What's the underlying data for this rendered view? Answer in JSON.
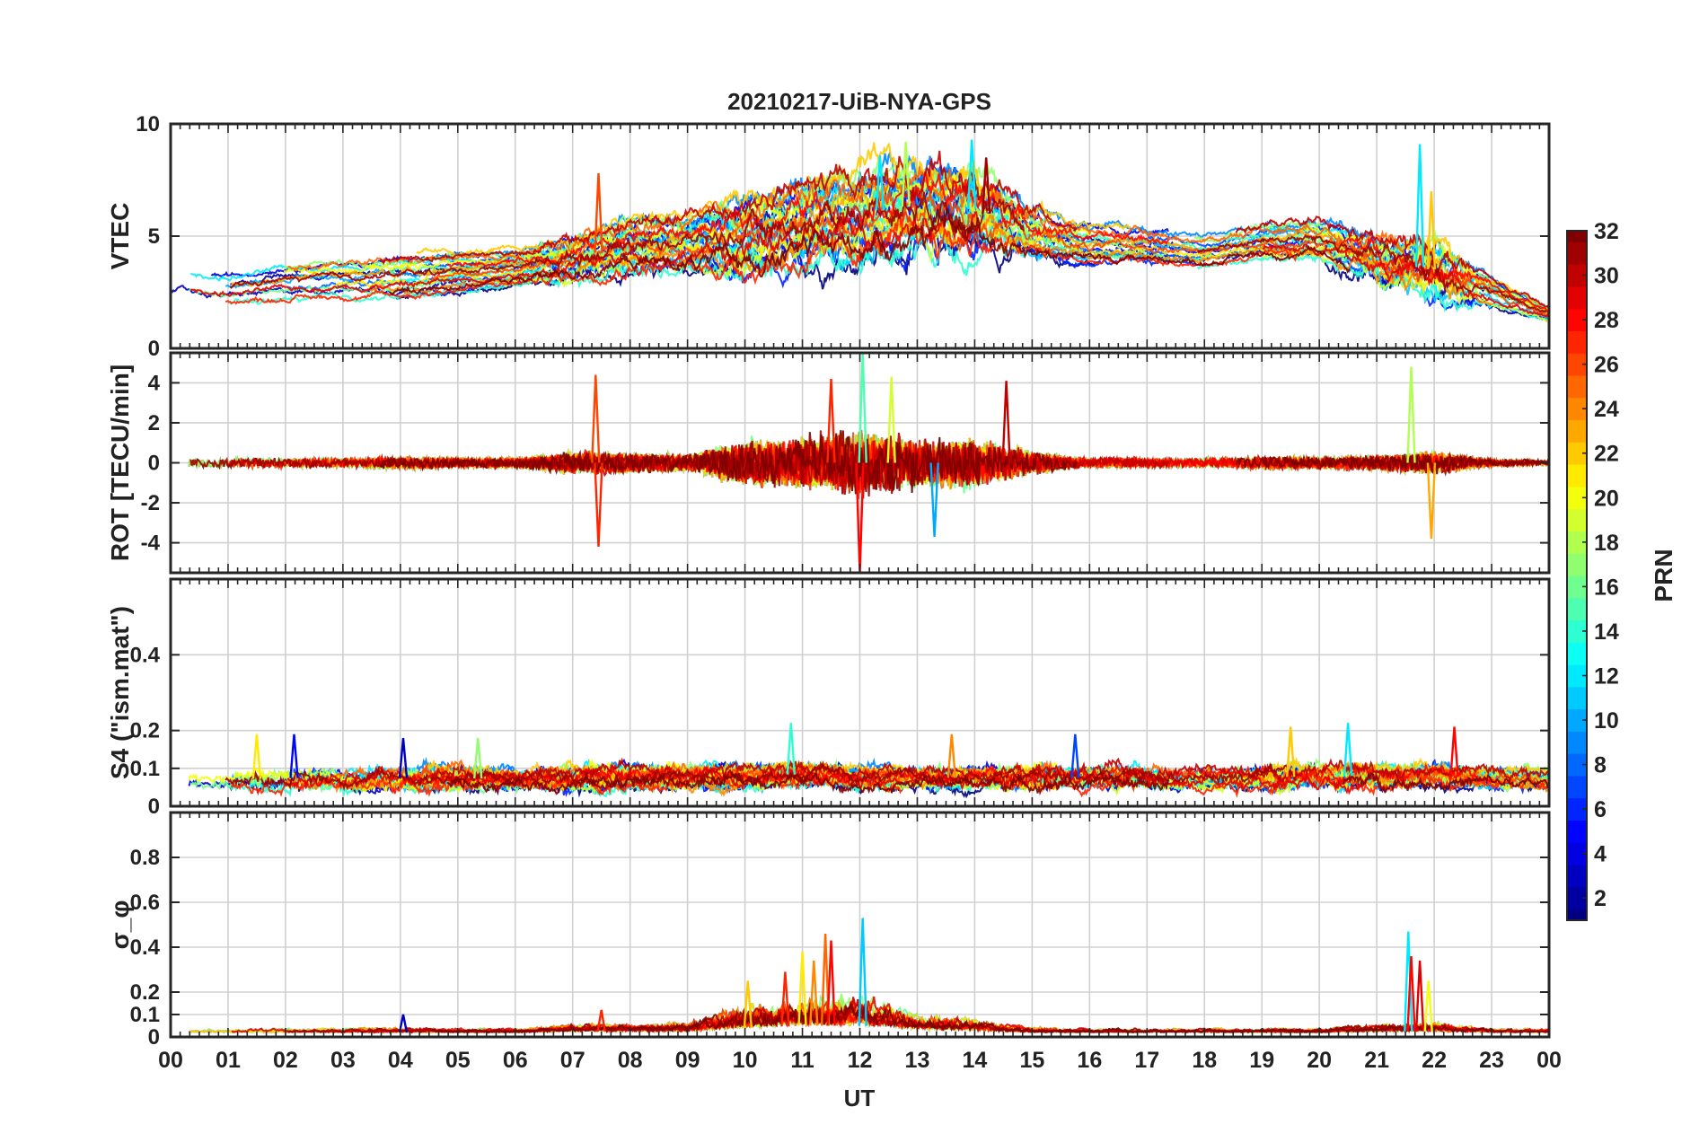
{
  "chart_data": {
    "type": "line",
    "title": "20210217-UiB-NYA-GPS",
    "xlabel": "UT",
    "xlim": [
      0,
      24
    ],
    "x_tick_values": [
      0,
      1,
      2,
      3,
      4,
      5,
      6,
      7,
      8,
      9,
      10,
      11,
      12,
      13,
      14,
      15,
      16,
      17,
      18,
      19,
      20,
      21,
      22,
      23,
      24
    ],
    "x_tick_labels": [
      "00",
      "01",
      "02",
      "03",
      "04",
      "05",
      "06",
      "07",
      "08",
      "09",
      "10",
      "11",
      "12",
      "13",
      "14",
      "15",
      "16",
      "17",
      "18",
      "19",
      "20",
      "21",
      "22",
      "23",
      "00"
    ],
    "grid": true,
    "colormap": "jet",
    "panels": [
      {
        "key": "vtec",
        "ylabel": "VTEC",
        "ylim": [
          0,
          10
        ],
        "yticks": [
          0,
          5,
          10
        ],
        "ytick_labels": [
          "0",
          "5",
          "10"
        ],
        "baseline": [
          3.0,
          2.7,
          3.0,
          3.1,
          3.2,
          3.4,
          3.6,
          4.0,
          4.6,
          4.7,
          5.0,
          5.5,
          6.0,
          6.4,
          6.2,
          5.2,
          4.6,
          4.6,
          4.3,
          4.8,
          4.8,
          4.0,
          3.5,
          2.5,
          1.5
        ],
        "spread": [
          0.7,
          0.7,
          0.9,
          0.9,
          1.0,
          0.9,
          0.8,
          0.9,
          1.1,
          1.3,
          1.6,
          1.8,
          1.9,
          1.7,
          1.5,
          1.1,
          0.9,
          0.8,
          0.7,
          0.8,
          0.9,
          0.9,
          1.0,
          0.6,
          0.3
        ],
        "noise": [
          0.06,
          0.06,
          0.06,
          0.06,
          0.08,
          0.06,
          0.06,
          0.15,
          0.15,
          0.15,
          0.25,
          0.3,
          0.3,
          0.35,
          0.35,
          0.15,
          0.08,
          0.08,
          0.06,
          0.08,
          0.1,
          0.2,
          0.3,
          0.06,
          0.05
        ],
        "spikes": [
          {
            "ut": 7.45,
            "value": 7.8,
            "prn": 26
          },
          {
            "ut": 12.8,
            "value": 9.2,
            "prn": 18
          },
          {
            "ut": 13.95,
            "value": 9.3,
            "prn": 12
          },
          {
            "ut": 14.2,
            "value": 8.5,
            "prn": 31
          },
          {
            "ut": 21.75,
            "value": 9.1,
            "prn": 12
          },
          {
            "ut": 21.95,
            "value": 7.0,
            "prn": 22
          },
          {
            "ut": 12.35,
            "value": 8.6,
            "prn": 12
          }
        ]
      },
      {
        "key": "rot",
        "ylabel": "ROT [TECU/min]",
        "ylim": [
          -5.5,
          5.5
        ],
        "yticks": [
          -4,
          -2,
          0,
          2,
          4
        ],
        "ytick_labels": [
          "-4",
          "-2",
          "0",
          "2",
          "4"
        ],
        "baseline": [
          0,
          0,
          0,
          0,
          0,
          0,
          0,
          0,
          0,
          0,
          0,
          0,
          0,
          0,
          0,
          0,
          0,
          0,
          0,
          0,
          0,
          0,
          0,
          0,
          0
        ],
        "spread": [
          0.03,
          0.03,
          0.03,
          0.03,
          0.03,
          0.03,
          0.03,
          0.05,
          0.05,
          0.05,
          0.05,
          0.05,
          0.05,
          0.05,
          0.05,
          0.03,
          0.03,
          0.03,
          0.03,
          0.03,
          0.03,
          0.05,
          0.05,
          0.03,
          0.03
        ],
        "noise": [
          0.2,
          0.2,
          0.2,
          0.2,
          0.25,
          0.2,
          0.2,
          0.45,
          0.4,
          0.35,
          0.9,
          1.1,
          1.3,
          1.0,
          1.0,
          0.45,
          0.2,
          0.2,
          0.2,
          0.25,
          0.25,
          0.3,
          0.5,
          0.15,
          0.1
        ],
        "spikes": [
          {
            "ut": 7.4,
            "value": 4.4,
            "prn": 26
          },
          {
            "ut": 7.45,
            "value": -4.2,
            "prn": 27
          },
          {
            "ut": 12.05,
            "value": 5.5,
            "prn": 15
          },
          {
            "ut": 12.0,
            "value": -5.5,
            "prn": 28
          },
          {
            "ut": 14.55,
            "value": 4.1,
            "prn": 30
          },
          {
            "ut": 13.3,
            "value": -3.7,
            "prn": 10
          },
          {
            "ut": 21.6,
            "value": 4.8,
            "prn": 18
          },
          {
            "ut": 21.95,
            "value": -3.8,
            "prn": 23
          },
          {
            "ut": 12.55,
            "value": 4.3,
            "prn": 19
          },
          {
            "ut": 11.5,
            "value": 4.2,
            "prn": 27
          }
        ]
      },
      {
        "key": "s4",
        "ylabel": "S4 (\"ism.mat\")",
        "ylim": [
          0,
          0.6
        ],
        "yticks": [
          0,
          0.1,
          0.2,
          0.4
        ],
        "ytick_labels": [
          "0",
          "0.1",
          "0.2",
          "0.4"
        ],
        "baseline": [
          0.065,
          0.07,
          0.075,
          0.07,
          0.075,
          0.075,
          0.07,
          0.075,
          0.08,
          0.075,
          0.08,
          0.085,
          0.075,
          0.075,
          0.075,
          0.075,
          0.075,
          0.075,
          0.075,
          0.075,
          0.08,
          0.08,
          0.08,
          0.075,
          0.07
        ],
        "spread": [
          0.015,
          0.015,
          0.02,
          0.015,
          0.02,
          0.02,
          0.015,
          0.02,
          0.02,
          0.02,
          0.02,
          0.02,
          0.02,
          0.02,
          0.02,
          0.02,
          0.02,
          0.02,
          0.02,
          0.02,
          0.02,
          0.02,
          0.02,
          0.02,
          0.02
        ],
        "noise": [
          0.01,
          0.012,
          0.015,
          0.012,
          0.015,
          0.015,
          0.012,
          0.015,
          0.015,
          0.015,
          0.015,
          0.015,
          0.012,
          0.012,
          0.012,
          0.015,
          0.015,
          0.015,
          0.012,
          0.015,
          0.015,
          0.015,
          0.015,
          0.012,
          0.012
        ],
        "spikes": [
          {
            "ut": 1.5,
            "value": 0.19,
            "prn": 21
          },
          {
            "ut": 2.15,
            "value": 0.19,
            "prn": 5
          },
          {
            "ut": 4.05,
            "value": 0.18,
            "prn": 3
          },
          {
            "ut": 10.8,
            "value": 0.22,
            "prn": 14
          },
          {
            "ut": 13.6,
            "value": 0.19,
            "prn": 24
          },
          {
            "ut": 15.75,
            "value": 0.19,
            "prn": 7
          },
          {
            "ut": 19.5,
            "value": 0.21,
            "prn": 22
          },
          {
            "ut": 20.5,
            "value": 0.22,
            "prn": 12
          },
          {
            "ut": 22.35,
            "value": 0.21,
            "prn": 28
          },
          {
            "ut": 5.35,
            "value": 0.18,
            "prn": 17
          }
        ]
      },
      {
        "key": "sigma_phi",
        "ylabel": "σ_φ",
        "ylim": [
          0,
          1.0
        ],
        "yticks": [
          0,
          0.1,
          0.2,
          0.4,
          0.6,
          0.8
        ],
        "ytick_labels": [
          "0",
          "0.1",
          "0.2",
          "0.4",
          "0.6",
          "0.8"
        ],
        "baseline": [
          0.02,
          0.02,
          0.02,
          0.02,
          0.02,
          0.02,
          0.02,
          0.025,
          0.025,
          0.025,
          0.04,
          0.05,
          0.05,
          0.035,
          0.03,
          0.02,
          0.02,
          0.02,
          0.02,
          0.02,
          0.02,
          0.025,
          0.025,
          0.02,
          0.02
        ],
        "spread": [
          0.005,
          0.005,
          0.005,
          0.005,
          0.005,
          0.005,
          0.005,
          0.005,
          0.005,
          0.005,
          0.01,
          0.01,
          0.01,
          0.01,
          0.01,
          0.005,
          0.005,
          0.005,
          0.005,
          0.005,
          0.005,
          0.005,
          0.005,
          0.005,
          0.005
        ],
        "noise": [
          0.008,
          0.008,
          0.008,
          0.008,
          0.01,
          0.008,
          0.008,
          0.015,
          0.015,
          0.02,
          0.045,
          0.06,
          0.06,
          0.03,
          0.02,
          0.01,
          0.008,
          0.008,
          0.008,
          0.008,
          0.008,
          0.015,
          0.02,
          0.008,
          0.008
        ],
        "spikes": [
          {
            "ut": 11.4,
            "value": 0.46,
            "prn": 25
          },
          {
            "ut": 11.5,
            "value": 0.43,
            "prn": 28
          },
          {
            "ut": 12.05,
            "value": 0.53,
            "prn": 11
          },
          {
            "ut": 10.05,
            "value": 0.25,
            "prn": 22
          },
          {
            "ut": 10.7,
            "value": 0.29,
            "prn": 27
          },
          {
            "ut": 11.0,
            "value": 0.38,
            "prn": 21
          },
          {
            "ut": 11.2,
            "value": 0.34,
            "prn": 24
          },
          {
            "ut": 21.55,
            "value": 0.47,
            "prn": 12
          },
          {
            "ut": 21.6,
            "value": 0.36,
            "prn": 28
          },
          {
            "ut": 21.75,
            "value": 0.34,
            "prn": 29
          },
          {
            "ut": 21.9,
            "value": 0.25,
            "prn": 20
          },
          {
            "ut": 7.5,
            "value": 0.12,
            "prn": 27
          },
          {
            "ut": 4.05,
            "value": 0.1,
            "prn": 3
          }
        ]
      }
    ],
    "colorbar": {
      "label": "PRN",
      "range": [
        1,
        32
      ],
      "ticks": [
        2,
        4,
        6,
        8,
        10,
        12,
        14,
        16,
        18,
        20,
        22,
        24,
        26,
        28,
        30,
        32
      ],
      "tick_labels": [
        "2",
        "4",
        "6",
        "8",
        "10",
        "12",
        "14",
        "16",
        "18",
        "20",
        "22",
        "24",
        "26",
        "28",
        "30",
        "32"
      ]
    },
    "prns": [
      1,
      2,
      3,
      4,
      5,
      6,
      7,
      8,
      9,
      10,
      11,
      12,
      13,
      14,
      15,
      16,
      17,
      18,
      19,
      20,
      21,
      22,
      23,
      24,
      25,
      26,
      27,
      28,
      29,
      30,
      31,
      32
    ]
  }
}
